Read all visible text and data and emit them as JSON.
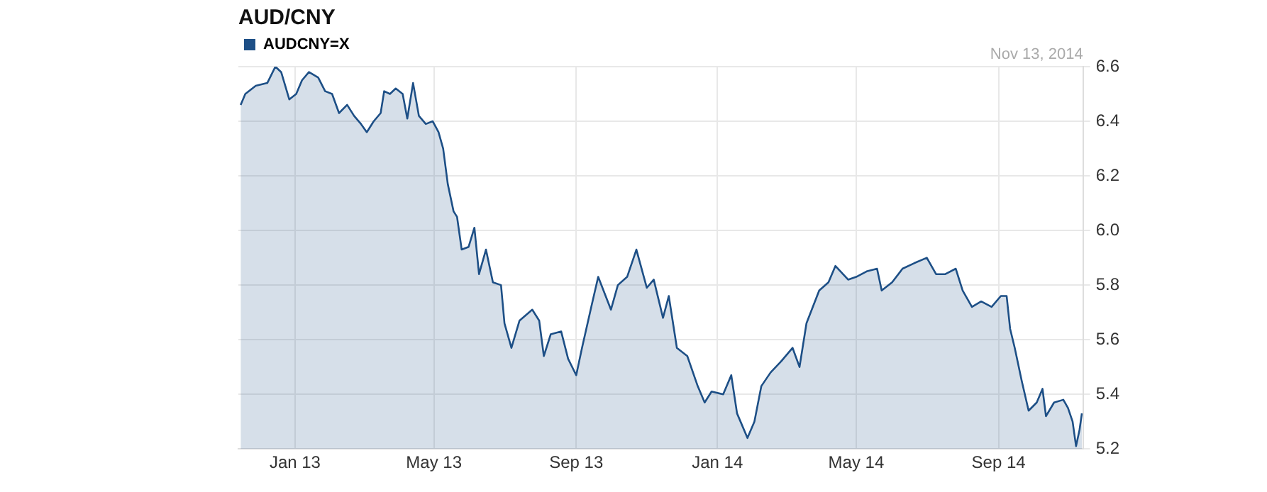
{
  "chart_data": {
    "type": "area",
    "title": "AUD/CNY",
    "annotations": [
      "Nov 13, 2014"
    ],
    "x": [
      "2012-11-15",
      "2012-11-19",
      "2012-11-28",
      "2012-12-08",
      "2012-12-15",
      "2012-12-20",
      "2012-12-27",
      "2013-01-02",
      "2013-01-07",
      "2013-01-13",
      "2013-01-21",
      "2013-01-27",
      "2013-02-02",
      "2013-02-08",
      "2013-02-15",
      "2013-02-21",
      "2013-02-27",
      "2013-03-04",
      "2013-03-10",
      "2013-03-16",
      "2013-03-19",
      "2013-03-24",
      "2013-03-29",
      "2013-04-04",
      "2013-04-08",
      "2013-04-13",
      "2013-04-18",
      "2013-04-24",
      "2013-04-30",
      "2013-05-05",
      "2013-05-09",
      "2013-05-13",
      "2013-05-18",
      "2013-05-21",
      "2013-05-25",
      "2013-05-31",
      "2013-06-05",
      "2013-06-09",
      "2013-06-15",
      "2013-06-21",
      "2013-06-28",
      "2013-07-01",
      "2013-07-07",
      "2013-07-14",
      "2013-07-25",
      "2013-07-31",
      "2013-08-04",
      "2013-08-10",
      "2013-08-19",
      "2013-08-25",
      "2013-09-01",
      "2013-09-06",
      "2013-09-14",
      "2013-09-20",
      "2013-10-01",
      "2013-10-07",
      "2013-10-15",
      "2013-10-23",
      "2013-11-01",
      "2013-11-07",
      "2013-11-15",
      "2013-11-20",
      "2013-11-27",
      "2013-12-06",
      "2013-12-15",
      "2013-12-21",
      "2013-12-27",
      "2014-01-06",
      "2014-01-13",
      "2014-01-18",
      "2014-01-27",
      "2014-02-02",
      "2014-02-08",
      "2014-02-16",
      "2014-02-25",
      "2014-03-07",
      "2014-03-13",
      "2014-03-19",
      "2014-03-30",
      "2014-04-07",
      "2014-04-13",
      "2014-04-24",
      "2014-05-01",
      "2014-05-10",
      "2014-05-19",
      "2014-05-23",
      "2014-06-01",
      "2014-06-10",
      "2014-06-20",
      "2014-07-01",
      "2014-07-09",
      "2014-07-17",
      "2014-07-26",
      "2014-08-01",
      "2014-08-09",
      "2014-08-17",
      "2014-08-26",
      "2014-09-03",
      "2014-09-08",
      "2014-09-11",
      "2014-09-15",
      "2014-09-21",
      "2014-09-27",
      "2014-10-04",
      "2014-10-09",
      "2014-10-12",
      "2014-10-19",
      "2014-10-27",
      "2014-10-31",
      "2014-11-04",
      "2014-11-07",
      "2014-11-10",
      "2014-11-12"
    ],
    "series": [
      {
        "name": "AUDCNY=X",
        "color": "#1d4f86",
        "values": [
          6.46,
          6.5,
          6.53,
          6.54,
          6.6,
          6.58,
          6.48,
          6.5,
          6.55,
          6.58,
          6.56,
          6.51,
          6.5,
          6.43,
          6.46,
          6.42,
          6.39,
          6.36,
          6.4,
          6.43,
          6.51,
          6.5,
          6.52,
          6.5,
          6.41,
          6.54,
          6.42,
          6.39,
          6.4,
          6.36,
          6.3,
          6.17,
          6.07,
          6.05,
          5.93,
          5.94,
          6.01,
          5.84,
          5.93,
          5.81,
          5.8,
          5.66,
          5.57,
          5.67,
          5.71,
          5.67,
          5.54,
          5.62,
          5.63,
          5.53,
          5.47,
          5.57,
          5.72,
          5.83,
          5.71,
          5.8,
          5.83,
          5.93,
          5.79,
          5.82,
          5.68,
          5.76,
          5.57,
          5.54,
          5.43,
          5.37,
          5.41,
          5.4,
          5.47,
          5.33,
          5.24,
          5.3,
          5.43,
          5.48,
          5.52,
          5.57,
          5.5,
          5.66,
          5.78,
          5.81,
          5.87,
          5.82,
          5.83,
          5.85,
          5.86,
          5.78,
          5.81,
          5.86,
          5.88,
          5.9,
          5.84,
          5.84,
          5.86,
          5.78,
          5.72,
          5.74,
          5.72,
          5.76,
          5.76,
          5.64,
          5.57,
          5.45,
          5.34,
          5.37,
          5.42,
          5.32,
          5.37,
          5.38,
          5.35,
          5.3,
          5.21,
          5.27,
          5.33
        ]
      }
    ],
    "xlim": [
      "2012-11-13",
      "2014-11-13"
    ],
    "xticks": [
      {
        "value": "2013-01-01",
        "label": "Jan 13"
      },
      {
        "value": "2013-05-01",
        "label": "May 13"
      },
      {
        "value": "2013-09-01",
        "label": "Sep 13"
      },
      {
        "value": "2014-01-01",
        "label": "Jan 14"
      },
      {
        "value": "2014-05-01",
        "label": "May 14"
      },
      {
        "value": "2014-09-01",
        "label": "Sep 14"
      }
    ],
    "ylim": [
      5.2,
      6.6
    ],
    "yticks": [
      5.2,
      5.4,
      5.6,
      5.8,
      {
        "value": 6,
        "label": "6.0"
      },
      6.2,
      6.4,
      6.6
    ],
    "grid": true,
    "legend": "top left",
    "line_style": "solid",
    "marker": "none"
  }
}
